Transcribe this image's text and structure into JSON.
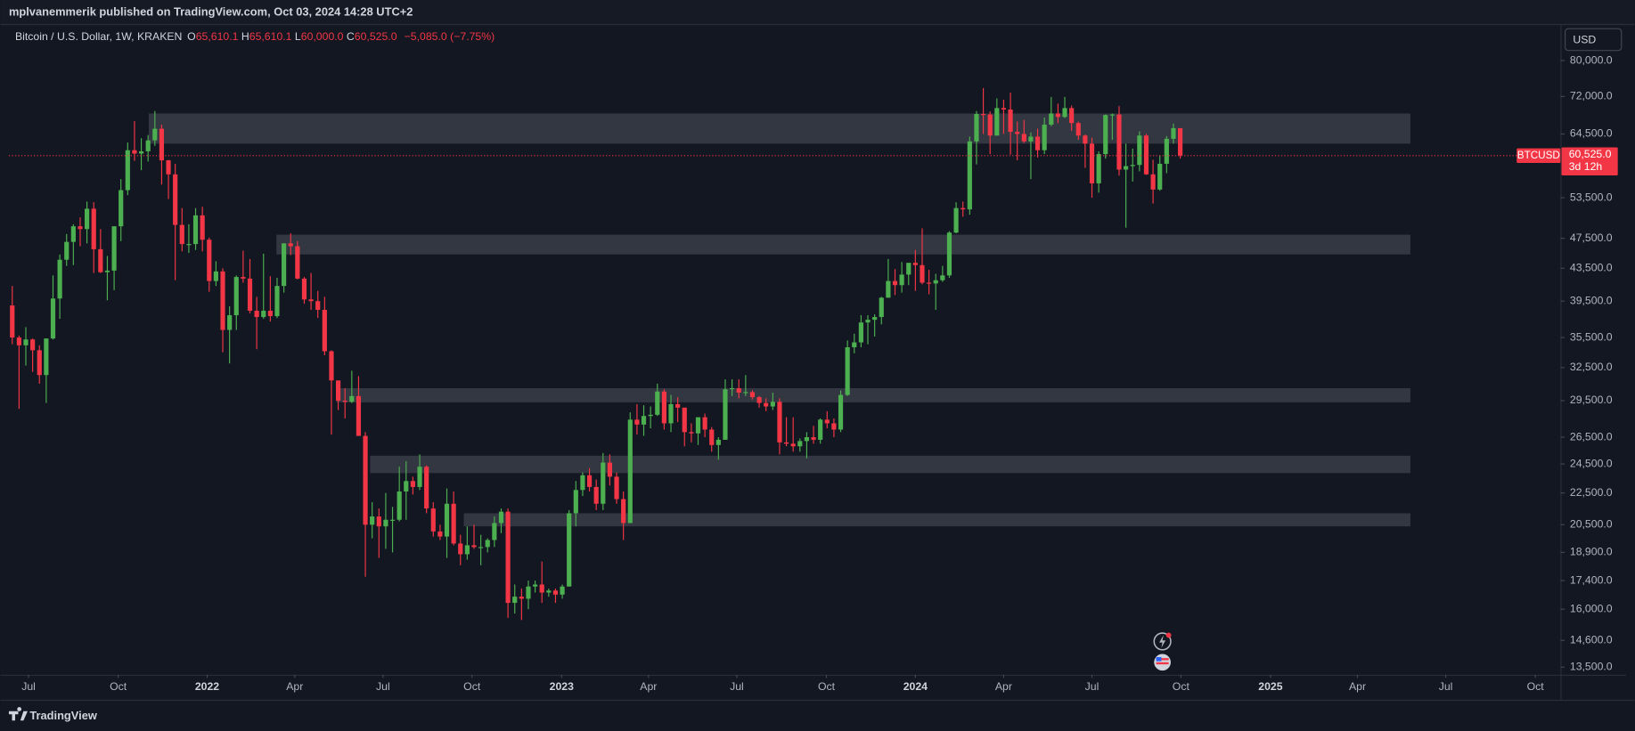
{
  "header": {
    "published": "mplvanemmerik published on TradingView.com, Oct 03, 2024 14:28 UTC+2",
    "currency": "USD",
    "footer": "TradingView"
  },
  "legend": {
    "symbol": "Bitcoin / U.S. Dollar, 1W, KRAKEN",
    "o_label": "O",
    "o": "65,610.1",
    "h_label": "H",
    "h": "65,610.1",
    "l_label": "L",
    "l": "60,000.0",
    "c_label": "C",
    "c": "60,525.0",
    "change": "−5,085.0 (−7.75%)"
  },
  "chart_data": {
    "type": "candlestick",
    "symbol": "BTCUSD",
    "log_scale": true,
    "grid": false,
    "up_color": "#4caf50",
    "down_color": "#f23645",
    "zone_color": "#3a3d47",
    "ylim": [
      13200,
      88800
    ],
    "yticks": [
      {
        "value": 13500,
        "label": "13,500.0"
      },
      {
        "value": 14600,
        "label": "14,600.0"
      },
      {
        "value": 16000,
        "label": "16,000.0"
      },
      {
        "value": 17400,
        "label": "17,400.0"
      },
      {
        "value": 18900,
        "label": "18,900.0"
      },
      {
        "value": 20500,
        "label": "20,500.0"
      },
      {
        "value": 22500,
        "label": "22,500.0"
      },
      {
        "value": 24500,
        "label": "24,500.0"
      },
      {
        "value": 26500,
        "label": "26,500.0"
      },
      {
        "value": 29500,
        "label": "29,500.0"
      },
      {
        "value": 32500,
        "label": "32,500.0"
      },
      {
        "value": 35500,
        "label": "35,500.0"
      },
      {
        "value": 39500,
        "label": "39,500.0"
      },
      {
        "value": 43500,
        "label": "43,500.0"
      },
      {
        "value": 47500,
        "label": "47,500.0"
      },
      {
        "value": 53500,
        "label": "53,500.0"
      },
      {
        "value": 64500,
        "label": "64,500.0"
      },
      {
        "value": 72000,
        "label": "72,000.0"
      },
      {
        "value": 80000,
        "label": "80,000.0"
      }
    ],
    "xlim": [
      -0.5,
      228
    ],
    "xticks": [
      {
        "value": 2.4,
        "label": "Jul"
      },
      {
        "value": 15.6,
        "label": "Oct"
      },
      {
        "value": 28.7,
        "label": "2022"
      },
      {
        "value": 41.6,
        "label": "Apr"
      },
      {
        "value": 54.6,
        "label": "Jul"
      },
      {
        "value": 67.7,
        "label": "Oct"
      },
      {
        "value": 80.9,
        "label": "2023"
      },
      {
        "value": 93.7,
        "label": "Apr"
      },
      {
        "value": 106.7,
        "label": "Jul"
      },
      {
        "value": 119.9,
        "label": "Oct"
      },
      {
        "value": 133,
        "label": "2024"
      },
      {
        "value": 146,
        "label": "Apr"
      },
      {
        "value": 159,
        "label": "Jul"
      },
      {
        "value": 172.1,
        "label": "Oct"
      },
      {
        "value": 185.3,
        "label": "2025"
      },
      {
        "value": 198.1,
        "label": "Apr"
      },
      {
        "value": 211.1,
        "label": "Jul"
      },
      {
        "value": 224.3,
        "label": "Oct"
      }
    ],
    "last_price": {
      "value": 60525,
      "label": "60,525.0"
    },
    "countdown": "3d 12h",
    "zones": [
      {
        "top": 68500,
        "bottom": 62700,
        "start": 20.1,
        "end": 205.9
      },
      {
        "top": 48000,
        "bottom": 45300,
        "start": 38.9,
        "end": 205.9
      },
      {
        "top": 30600,
        "bottom": 29350,
        "start": 47.7,
        "end": 205.9
      },
      {
        "top": 25100,
        "bottom": 23850,
        "start": 52.7,
        "end": 205.9
      },
      {
        "top": 21200,
        "bottom": 20400,
        "start": 66.5,
        "end": 205.9
      }
    ],
    "open": [
      39000,
      35500,
      34700,
      35300,
      34200,
      31800,
      35400,
      39800,
      44600,
      47000,
      49200,
      48800,
      51800,
      46000,
      43000,
      43200,
      49200,
      54700,
      61500,
      60900,
      61300,
      63300,
      65500,
      59700,
      57300,
      49400,
      46700,
      46700,
      50800,
      47300,
      41900,
      43100,
      36300,
      37900,
      42400,
      42200,
      38400,
      37700,
      38400,
      37800,
      41300,
      46800,
      46400,
      42200,
      39700,
      39500,
      38500,
      34100,
      31300,
      29500,
      29400,
      29900,
      26600,
      20500,
      21000,
      20400,
      20800,
      20800,
      22600,
      23300,
      22900,
      24300,
      21500,
      20100,
      19800,
      21800,
      19400,
      18800,
      19300,
      19200,
      19200,
      19600,
      20600,
      21300,
      16300,
      16600,
      16500,
      17100,
      17200,
      16800,
      16900,
      16700,
      17100,
      21200,
      22700,
      23700,
      22900,
      21800,
      24600,
      23600,
      22100,
      20600,
      27900,
      27500,
      28200,
      28300,
      30300,
      27600,
      29200,
      28900,
      26900,
      26800,
      28100,
      27100,
      25900,
      26300,
      30500,
      30600,
      30200,
      30250,
      29800,
      29300,
      29000,
      29400,
      26100,
      26000,
      25800,
      26200,
      26500,
      26300,
      27900,
      27600,
      27100,
      30000,
      34500,
      35000,
      37100,
      37400,
      37700,
      39900,
      41900,
      41400,
      42700,
      44200,
      43900,
      41700,
      41600,
      42000,
      42600,
      48300,
      51900,
      51700,
      63100,
      68400,
      68300,
      64200,
      69600,
      69300,
      64900,
      64500,
      63100,
      64000,
      61500,
      66300,
      68500,
      67800,
      69600,
      66600,
      64200,
      62700,
      55800,
      60800,
      68200,
      68300,
      58100,
      58700,
      58900,
      64200,
      57300,
      54800,
      59100,
      63600,
      65610.1
    ],
    "high": [
      41300,
      35700,
      36600,
      35400,
      34700,
      35400,
      42600,
      45300,
      48100,
      49500,
      50500,
      52900,
      52800,
      48800,
      45100,
      49200,
      56500,
      62900,
      67000,
      63700,
      64300,
      69000,
      66300,
      59800,
      59100,
      51900,
      49500,
      51900,
      52100,
      47600,
      44400,
      43500,
      38900,
      42600,
      45800,
      44700,
      40000,
      45400,
      42500,
      42300,
      46800,
      48200,
      47100,
      42400,
      42900,
      40700,
      40000,
      34200,
      31300,
      30600,
      32200,
      31700,
      26900,
      21900,
      21500,
      22500,
      21600,
      24300,
      24700,
      23600,
      25200,
      24400,
      21900,
      20500,
      22800,
      22600,
      19900,
      20400,
      20500,
      19900,
      19700,
      21000,
      21500,
      21500,
      17200,
      17000,
      17400,
      17400,
      18400,
      17000,
      17000,
      17200,
      21400,
      23300,
      23900,
      24200,
      23400,
      25300,
      25200,
      23900,
      22600,
      28500,
      29200,
      29100,
      29000,
      31000,
      30500,
      30000,
      29800,
      28900,
      27600,
      27500,
      28400,
      27300,
      26500,
      31400,
      31400,
      31400,
      31800,
      30400,
      29900,
      29700,
      30200,
      29700,
      28100,
      28100,
      26400,
      26900,
      27400,
      28000,
      28600,
      28000,
      30400,
      35200,
      35900,
      37900,
      37900,
      38000,
      40000,
      44700,
      43400,
      44300,
      43800,
      45900,
      48900,
      43300,
      42800,
      43800,
      48500,
      52800,
      52900,
      64000,
      69000,
      73800,
      68900,
      71600,
      71300,
      72800,
      66900,
      67200,
      64800,
      65500,
      67700,
      71900,
      70500,
      71900,
      70100,
      66900,
      64400,
      63800,
      61300,
      68300,
      68500,
      70000,
      62700,
      61800,
      65000,
      64500,
      59800,
      60600,
      64100,
      66500,
      65610.1
    ],
    "low": [
      34800,
      28800,
      32700,
      32100,
      31000,
      29300,
      35300,
      37500,
      43800,
      43900,
      46400,
      46800,
      42900,
      42900,
      39600,
      40800,
      47100,
      53900,
      59600,
      58000,
      59500,
      62300,
      55600,
      53300,
      42000,
      45700,
      45500,
      45900,
      45700,
      40600,
      41300,
      34000,
      32900,
      36300,
      41700,
      38100,
      34300,
      37500,
      37200,
      37600,
      40500,
      45200,
      42100,
      39200,
      38500,
      37600,
      33700,
      26700,
      28700,
      28000,
      29300,
      26600,
      17600,
      19700,
      18600,
      19100,
      18900,
      20700,
      20800,
      22400,
      22700,
      21200,
      19800,
      19600,
      18600,
      19300,
      18200,
      18500,
      19100,
      18200,
      18900,
      19200,
      20000,
      15600,
      15800,
      15500,
      16000,
      16800,
      16300,
      16600,
      16300,
      16500,
      17100,
      20400,
      22300,
      22600,
      21400,
      21400,
      23000,
      21800,
      19600,
      20600,
      26700,
      26600,
      27200,
      28200,
      27100,
      26900,
      27700,
      25800,
      26100,
      25900,
      26500,
      25400,
      24800,
      26300,
      29900,
      29700,
      29900,
      29600,
      28900,
      28600,
      28700,
      25200,
      25800,
      25400,
      25400,
      24900,
      26000,
      26000,
      27200,
      26500,
      26900,
      29900,
      33900,
      34500,
      34800,
      35600,
      36900,
      39900,
      40200,
      40500,
      41400,
      40700,
      41500,
      40300,
      38500,
      41800,
      42300,
      48200,
      50600,
      50900,
      59000,
      64500,
      60800,
      64200,
      64500,
      60700,
      59700,
      62800,
      56500,
      60200,
      60800,
      66000,
      66600,
      67600,
      65100,
      63400,
      58400,
      53500,
      54300,
      60000,
      63400,
      57100,
      49000,
      56100,
      57800,
      57200,
      52600,
      54600,
      57500,
      62700,
      60000
    ],
    "close": [
      35500,
      34700,
      35300,
      34200,
      31800,
      35400,
      39800,
      44600,
      47000,
      49200,
      48800,
      51800,
      46000,
      43000,
      43200,
      49200,
      54700,
      61500,
      60900,
      61300,
      63300,
      65500,
      59700,
      57300,
      49400,
      46700,
      46700,
      50800,
      47300,
      41900,
      43100,
      36300,
      37900,
      42400,
      42200,
      38400,
      37700,
      38400,
      37800,
      41300,
      46800,
      46400,
      42200,
      39700,
      39500,
      38500,
      34100,
      31300,
      29500,
      29400,
      29900,
      26600,
      20500,
      21000,
      20400,
      20800,
      20800,
      22600,
      23300,
      22900,
      24300,
      21500,
      20100,
      19800,
      21800,
      19400,
      18800,
      19300,
      19200,
      19200,
      19600,
      20600,
      21300,
      16300,
      16600,
      16500,
      17100,
      17200,
      16800,
      16900,
      16700,
      17100,
      21200,
      22700,
      23700,
      22900,
      21800,
      24600,
      23600,
      22100,
      20600,
      27900,
      27500,
      28200,
      28300,
      30300,
      27600,
      29200,
      28900,
      26900,
      26800,
      28100,
      27100,
      25900,
      26300,
      30500,
      30600,
      30200,
      30250,
      29800,
      29300,
      29000,
      29400,
      26100,
      26000,
      25800,
      26200,
      26500,
      26300,
      27900,
      27600,
      27100,
      30000,
      34500,
      35000,
      37100,
      37400,
      37700,
      39900,
      41900,
      41400,
      42700,
      44200,
      43900,
      41700,
      41600,
      42000,
      42600,
      48300,
      51900,
      51700,
      63100,
      68400,
      68300,
      64200,
      69600,
      69300,
      64900,
      64500,
      63100,
      64000,
      61500,
      66300,
      68500,
      67800,
      69600,
      66600,
      64200,
      62700,
      55800,
      60800,
      68200,
      68300,
      58100,
      58700,
      58900,
      64200,
      57300,
      54800,
      59100,
      63600,
      65610.1,
      60525
    ]
  }
}
